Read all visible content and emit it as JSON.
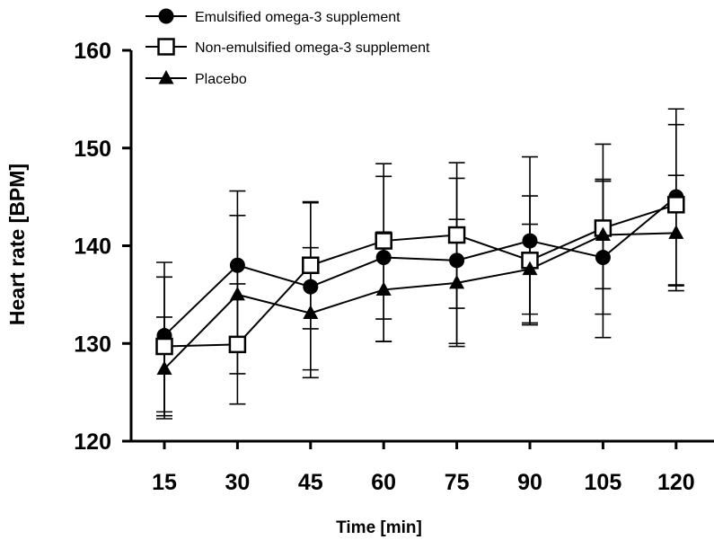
{
  "chart_data": {
    "type": "line",
    "title": "",
    "xlabel": "Time [min]",
    "ylabel": "Heart rate [BPM]",
    "categories": [
      "15",
      "30",
      "45",
      "60",
      "75",
      "90",
      "105",
      "120"
    ],
    "ylim": [
      120,
      160
    ],
    "yticks": [
      "120",
      "130",
      "140",
      "150",
      "160"
    ],
    "grid": false,
    "legend_position": "top-left",
    "series": [
      {
        "name": "Emulsified omega-3 supplement",
        "marker": "filled-circle",
        "values": [
          130.8,
          138.0,
          135.8,
          138.8,
          138.5,
          140.5,
          138.8,
          145.0
        ],
        "error_low": [
          122.3,
          130.6,
          126.5,
          130.2,
          130.0,
          131.9,
          130.6,
          135.9
        ],
        "error_high": [
          138.3,
          145.6,
          144.4,
          147.1,
          146.9,
          149.1,
          146.8,
          154.0
        ]
      },
      {
        "name": "Non-emulsified omega-3 supplement",
        "marker": "open-square",
        "values": [
          129.7,
          129.9,
          138.0,
          140.5,
          141.1,
          138.5,
          141.8,
          144.2
        ],
        "error_low": [
          123.0,
          123.8,
          131.5,
          132.5,
          133.6,
          133.0,
          133.0,
          136.0
        ],
        "error_high": [
          136.8,
          136.1,
          144.5,
          148.4,
          148.5,
          145.1,
          150.4,
          152.4
        ]
      },
      {
        "name": "Placebo",
        "marker": "filled-triangle",
        "values": [
          127.4,
          135.0,
          133.1,
          135.5,
          136.2,
          137.6,
          141.1,
          141.3
        ],
        "error_low": [
          122.6,
          126.9,
          127.3,
          130.2,
          129.7,
          132.1,
          135.6,
          135.4
        ],
        "error_high": [
          132.7,
          143.1,
          139.8,
          141.4,
          142.7,
          142.2,
          146.6,
          147.2
        ]
      }
    ]
  }
}
